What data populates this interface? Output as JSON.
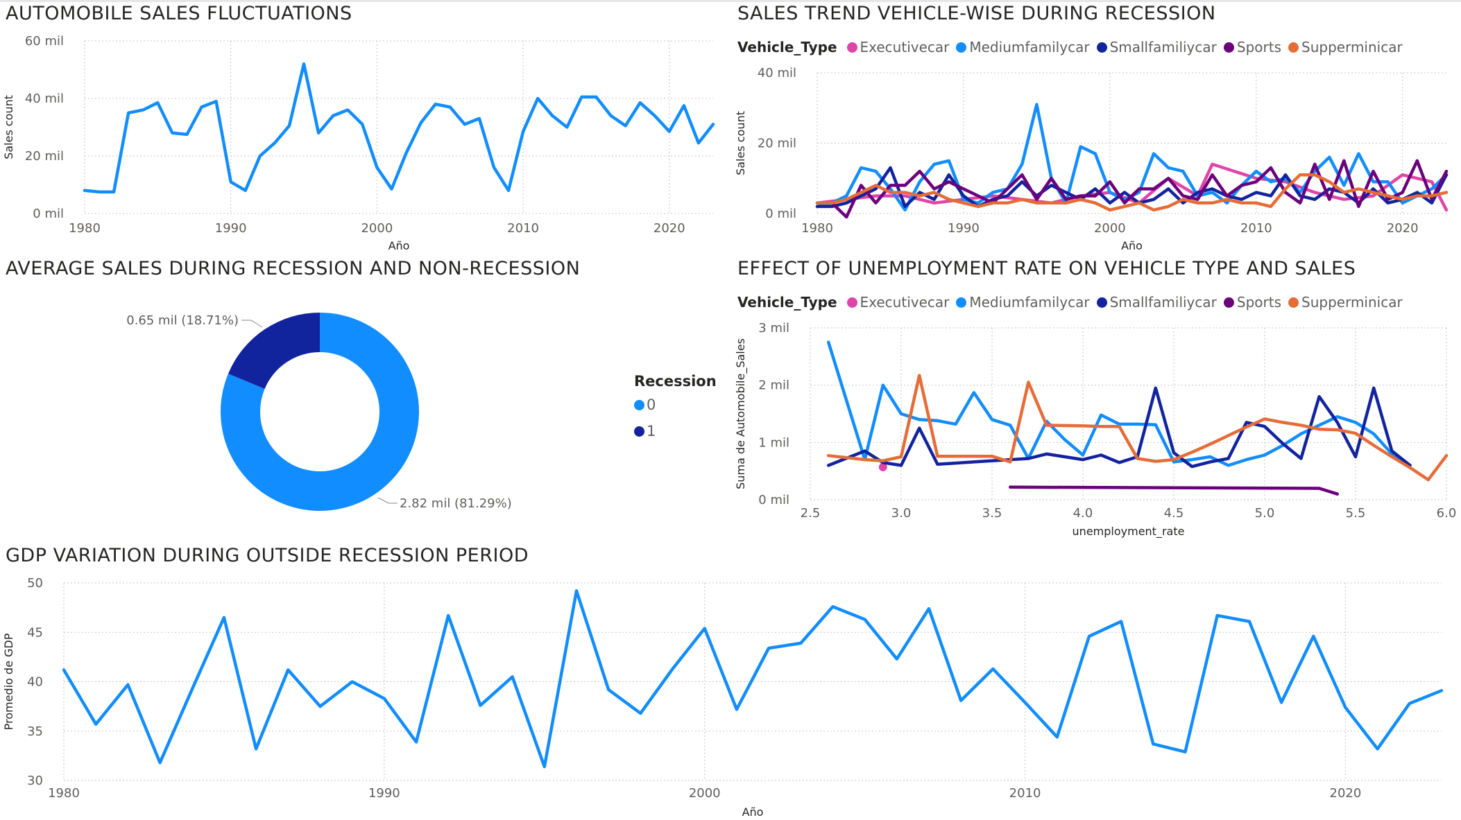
{
  "chart_data": [
    {
      "id": "sales",
      "type": "line",
      "title": "AUTOMOBILE SALES FLUCTUATIONS",
      "xlabel": "Año",
      "ylabel": "Sales count",
      "xlim": [
        1980,
        2023
      ],
      "ylim": [
        0,
        60
      ],
      "yticks": [
        0,
        20,
        40,
        60
      ],
      "ytick_labels": [
        "0 mil",
        "20 mil",
        "40 mil",
        "60 mil"
      ],
      "xticks": [
        1980,
        1990,
        2000,
        2010,
        2020
      ],
      "grid": true,
      "series": [
        {
          "color": "#118DFF",
          "x": [
            1980,
            1981,
            1982,
            1983,
            1984,
            1985,
            1986,
            1987,
            1988,
            1989,
            1990,
            1991,
            1992,
            1993,
            1994,
            1995,
            1996,
            1997,
            1998,
            1999,
            2000,
            2001,
            2002,
            2003,
            2004,
            2005,
            2006,
            2007,
            2008,
            2009,
            2010,
            2011,
            2012,
            2013,
            2014,
            2015,
            2016,
            2017,
            2018,
            2019,
            2020,
            2021,
            2022,
            2023
          ],
          "y": [
            8.0,
            7.5,
            7.5,
            35.0,
            36.0,
            38.5,
            28.0,
            27.5,
            37.0,
            39.0,
            11.0,
            8.0,
            20.0,
            24.5,
            30.5,
            52.0,
            28.0,
            34.0,
            36.0,
            31.0,
            16.0,
            8.5,
            21.0,
            31.5,
            38.0,
            37.0,
            31.0,
            33.0,
            16.0,
            8.0,
            28.5,
            40.0,
            34.0,
            30.0,
            40.5,
            40.5,
            34.0,
            30.5,
            38.5,
            34.0,
            28.5,
            37.5,
            24.5,
            31.0
          ]
        }
      ]
    },
    {
      "id": "trend",
      "type": "line",
      "title": "SALES TREND VEHICLE-WISE DURING RECESSION",
      "xlabel": "Año",
      "ylabel": "Sales count",
      "legend_title": "Vehicle_Type",
      "legend_position": "top-left",
      "xlim": [
        1980,
        2023
      ],
      "ylim": [
        0,
        40
      ],
      "yticks": [
        0,
        20,
        40
      ],
      "ytick_labels": [
        "0 mil",
        "20 mil",
        "40 mil"
      ],
      "xticks": [
        1980,
        1990,
        2000,
        2010,
        2020
      ],
      "grid": true,
      "series": [
        {
          "name": "Executivecar",
          "color": "#E044A7",
          "x": [
            1980,
            1982,
            1984,
            1986,
            1988,
            1990,
            1992,
            1994,
            1996,
            1998,
            2000,
            2002,
            2004,
            2006,
            2007,
            2010,
            2012,
            2014,
            2016,
            2018,
            2020,
            2022,
            2023
          ],
          "y": [
            3,
            4,
            5,
            5,
            3,
            4,
            5,
            4,
            3,
            5,
            6,
            3,
            10,
            5,
            14,
            10,
            9,
            6,
            4,
            5,
            11,
            9,
            1
          ]
        },
        {
          "name": "Mediumfamilycar",
          "color": "#118DFF",
          "x": [
            1980,
            1981,
            1982,
            1983,
            1984,
            1985,
            1986,
            1987,
            1988,
            1989,
            1990,
            1991,
            1992,
            1993,
            1994,
            1995,
            1996,
            1997,
            1998,
            1999,
            2000,
            2001,
            2002,
            2003,
            2004,
            2005,
            2006,
            2007,
            2008,
            2009,
            2010,
            2011,
            2012,
            2013,
            2014,
            2015,
            2016,
            2017,
            2018,
            2019,
            2020,
            2021,
            2022,
            2023
          ],
          "y": [
            2,
            3,
            5,
            13,
            12,
            7,
            1,
            9,
            14,
            15,
            4,
            3,
            6,
            7,
            14,
            31,
            10,
            3,
            19,
            17,
            6,
            4,
            6,
            17,
            13,
            12,
            5,
            6,
            3,
            8,
            12,
            9,
            10,
            6,
            12,
            16,
            8,
            17,
            9,
            9,
            3,
            5,
            7,
            11
          ]
        },
        {
          "name": "Smallfamiliycar",
          "color": "#12239E",
          "x": [
            1980,
            1981,
            1982,
            1983,
            1984,
            1985,
            1986,
            1987,
            1988,
            1989,
            1990,
            1991,
            1992,
            1993,
            1994,
            1995,
            1996,
            1997,
            1998,
            1999,
            2000,
            2001,
            2002,
            2003,
            2004,
            2005,
            2006,
            2007,
            2008,
            2009,
            2010,
            2011,
            2012,
            2013,
            2014,
            2015,
            2016,
            2017,
            2018,
            2019,
            2020,
            2021,
            2022,
            2023
          ],
          "y": [
            2,
            2,
            3,
            5,
            7,
            13,
            2,
            6,
            4,
            11,
            5,
            2,
            4,
            5,
            9,
            5,
            8,
            6,
            4,
            7,
            3,
            6,
            3,
            4,
            7,
            3,
            6,
            7,
            5,
            4,
            6,
            5,
            11,
            5,
            4,
            7,
            6,
            3,
            7,
            3,
            4,
            6,
            3,
            11
          ]
        },
        {
          "name": "Sports",
          "color": "#6B007B",
          "x": [
            1980,
            1981,
            1982,
            1983,
            1984,
            1985,
            1986,
            1987,
            1988,
            1989,
            1990,
            1991,
            1992,
            1993,
            1994,
            1995,
            1996,
            1997,
            1998,
            1999,
            2000,
            2001,
            2002,
            2003,
            2004,
            2005,
            2006,
            2007,
            2008,
            2009,
            2010,
            2011,
            2012,
            2013,
            2014,
            2015,
            2016,
            2017,
            2018,
            2019,
            2020,
            2021,
            2022,
            2023
          ],
          "y": [
            3,
            3,
            -1,
            8,
            3,
            8,
            8,
            12,
            7,
            9,
            7,
            5,
            3,
            7,
            11,
            4,
            10,
            4,
            5,
            5,
            9,
            3,
            7,
            7,
            10,
            5,
            4,
            11,
            5,
            8,
            9,
            13,
            6,
            3,
            14,
            4,
            15,
            2,
            12,
            4,
            6,
            15,
            4,
            12
          ]
        },
        {
          "name": "Supperminicar",
          "color": "#E66C37",
          "x": [
            1980,
            1981,
            1982,
            1983,
            1984,
            1985,
            1986,
            1987,
            1988,
            1989,
            1990,
            1991,
            1992,
            1993,
            1994,
            1995,
            1996,
            1997,
            1998,
            1999,
            2000,
            2001,
            2002,
            2003,
            2004,
            2005,
            2006,
            2007,
            2008,
            2009,
            2010,
            2011,
            2012,
            2013,
            2014,
            2015,
            2016,
            2017,
            2018,
            2019,
            2020,
            2021,
            2022,
            2023
          ],
          "y": [
            3,
            3,
            4,
            6,
            8,
            6,
            6,
            5,
            6,
            4,
            3,
            2,
            3,
            3,
            4,
            3,
            3,
            3,
            4,
            3,
            1,
            2,
            3,
            1,
            2,
            4,
            3,
            3,
            4,
            3,
            3,
            2,
            7,
            11,
            11,
            9,
            6,
            7,
            6,
            5,
            4,
            5,
            5,
            6
          ]
        }
      ]
    },
    {
      "id": "donut",
      "type": "pie",
      "title": "AVERAGE SALES DURING RECESSION AND NON-RECESSION",
      "legend_title": "Recession",
      "legend_position": "right",
      "slices": [
        {
          "label": "0",
          "value": 2.82,
          "percent": 81.29,
          "color": "#118DFF",
          "data_label": "2.82 mil (81.29%)"
        },
        {
          "label": "1",
          "value": 0.65,
          "percent": 18.71,
          "color": "#12239E",
          "data_label": "0.65 mil (18.71%)"
        }
      ]
    },
    {
      "id": "unemp",
      "type": "line",
      "title": "EFFECT OF UNEMPLOYMENT RATE ON VEHICLE TYPE AND SALES",
      "xlabel": "unemployment_rate",
      "ylabel": "Suma de Automobile_Sales",
      "legend_title": "Vehicle_Type",
      "legend_position": "top-left",
      "xlim": [
        2.5,
        6.0
      ],
      "ylim": [
        0,
        3
      ],
      "yticks": [
        0,
        1,
        2,
        3
      ],
      "ytick_labels": [
        "0 mil",
        "1 mil",
        "2 mil",
        "3 mil"
      ],
      "xticks": [
        2.5,
        3.0,
        3.5,
        4.0,
        4.5,
        5.0,
        5.5,
        6.0
      ],
      "xtick_labels": [
        "2.5",
        "3.0",
        "3.5",
        "4.0",
        "4.5",
        "5.0",
        "5.5",
        "6.0"
      ],
      "grid": true,
      "series": [
        {
          "name": "Executivecar",
          "color": "#E044A7",
          "x": [
            2.9
          ],
          "y": [
            0.57
          ]
        },
        {
          "name": "Mediumfamilycar",
          "color": "#118DFF",
          "x": [
            2.6,
            2.8,
            2.9,
            3.0,
            3.1,
            3.2,
            3.3,
            3.4,
            3.5,
            3.6,
            3.7,
            3.8,
            3.9,
            4.0,
            4.1,
            4.2,
            4.3,
            4.4,
            4.5,
            4.6,
            4.7,
            4.8,
            4.9,
            5.0,
            5.1,
            5.2,
            5.3,
            5.4,
            5.5,
            5.6,
            5.7,
            5.8
          ],
          "y": [
            2.75,
            0.7,
            2.0,
            1.5,
            1.4,
            1.38,
            1.32,
            1.87,
            1.4,
            1.3,
            0.72,
            1.37,
            1.05,
            0.78,
            1.48,
            1.32,
            1.32,
            1.31,
            0.66,
            0.7,
            0.75,
            0.6,
            0.7,
            0.78,
            0.95,
            1.15,
            1.3,
            1.45,
            1.35,
            1.15,
            0.8,
            0.6
          ]
        },
        {
          "name": "Smallfamiliycar",
          "color": "#12239E",
          "x": [
            2.6,
            2.8,
            2.9,
            3.0,
            3.1,
            3.2,
            3.3,
            3.4,
            3.5,
            3.6,
            3.7,
            3.8,
            3.9,
            4.0,
            4.1,
            4.2,
            4.3,
            4.4,
            4.5,
            4.6,
            4.7,
            4.8,
            4.9,
            5.0,
            5.1,
            5.2,
            5.3,
            5.4,
            5.5,
            5.6,
            5.7,
            5.8
          ],
          "y": [
            0.6,
            0.85,
            0.65,
            0.6,
            1.25,
            0.62,
            0.64,
            0.66,
            0.68,
            0.7,
            0.72,
            0.8,
            0.75,
            0.7,
            0.78,
            0.65,
            0.75,
            1.95,
            0.82,
            0.58,
            0.66,
            0.72,
            1.35,
            1.28,
            0.98,
            0.72,
            1.8,
            1.35,
            0.75,
            1.95,
            0.85,
            0.6
          ]
        },
        {
          "name": "Sports",
          "color": "#6B007B",
          "x": [
            3.6,
            5.3,
            5.4
          ],
          "y": [
            0.22,
            0.2,
            0.1
          ]
        },
        {
          "name": "Supperminicar",
          "color": "#E66C37",
          "x": [
            2.6,
            2.8,
            2.9,
            3.0,
            3.1,
            3.2,
            3.3,
            3.4,
            3.5,
            3.6,
            3.7,
            3.8,
            4.0,
            4.1,
            4.2,
            4.3,
            4.4,
            4.5,
            4.6,
            4.7,
            4.8,
            4.9,
            5.0,
            5.1,
            5.2,
            5.3,
            5.4,
            5.5,
            5.6,
            5.7,
            5.8,
            5.9,
            6.0
          ],
          "y": [
            0.77,
            0.7,
            0.68,
            0.75,
            2.17,
            0.76,
            0.76,
            0.76,
            0.76,
            0.66,
            2.05,
            1.3,
            1.29,
            1.28,
            1.28,
            0.72,
            0.67,
            0.7,
            0.83,
            0.97,
            1.12,
            1.27,
            1.41,
            1.35,
            1.3,
            1.23,
            1.22,
            1.16,
            0.95,
            0.75,
            0.56,
            0.35,
            0.77
          ]
        }
      ]
    },
    {
      "id": "gdp",
      "type": "line",
      "title": "GDP VARIATION DURING OUTSIDE RECESSION PERIOD",
      "xlabel": "Año",
      "ylabel": "Promedio de GDP",
      "xlim": [
        1980,
        2023
      ],
      "ylim": [
        30,
        50
      ],
      "yticks": [
        30,
        35,
        40,
        45,
        50
      ],
      "ytick_labels": [
        "30",
        "35",
        "40",
        "45",
        "50"
      ],
      "xticks": [
        1980,
        1990,
        2000,
        2010,
        2020
      ],
      "grid": true,
      "series": [
        {
          "color": "#118DFF",
          "x": [
            1980,
            1981,
            1982,
            1983,
            1984,
            1985,
            1986,
            1987,
            1988,
            1989,
            1990,
            1991,
            1992,
            1993,
            1994,
            1995,
            1996,
            1997,
            1998,
            1999,
            2000,
            2001,
            2002,
            2003,
            2004,
            2005,
            2006,
            2007,
            2008,
            2009,
            2010,
            2011,
            2012,
            2013,
            2014,
            2015,
            2016,
            2017,
            2018,
            2019,
            2020,
            2021,
            2022,
            2023
          ],
          "y": [
            41.2,
            35.7,
            39.7,
            31.8,
            39.2,
            46.5,
            33.2,
            41.2,
            37.5,
            40.0,
            38.3,
            33.9,
            46.7,
            37.6,
            40.5,
            31.4,
            49.2,
            39.2,
            36.8,
            41.3,
            45.4,
            37.2,
            43.4,
            43.9,
            47.6,
            46.3,
            42.3,
            47.4,
            38.1,
            41.3,
            37.9,
            34.4,
            44.6,
            46.1,
            33.7,
            32.9,
            46.7,
            46.1,
            37.9,
            44.6,
            37.4,
            33.2,
            37.8,
            39.1
          ]
        }
      ]
    }
  ]
}
